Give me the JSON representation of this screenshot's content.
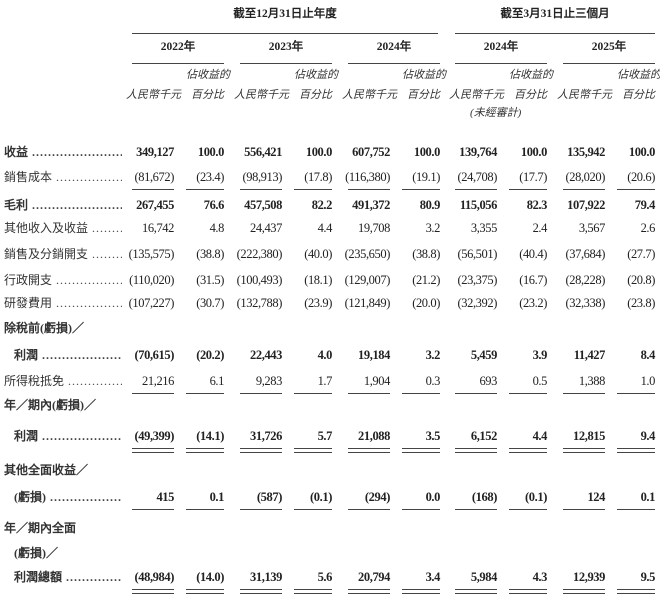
{
  "header": {
    "group_annual": "截至12月31日止年度",
    "group_interim": "截至3月31日止三個月",
    "years": [
      "2022年",
      "2023年",
      "2024年",
      "2024年",
      "2025年"
    ],
    "col_amount": "人民幣千元",
    "col_pct_line1": "佔收益的",
    "col_pct_line2": "百分比",
    "unaudited": "(未經審計)"
  },
  "rows": [
    {
      "label": "收益",
      "bold": true,
      "values": [
        "349,127",
        "100.0",
        "556,421",
        "100.0",
        "607,752",
        "100.0",
        "139,764",
        "100.0",
        "135,942",
        "100.0"
      ]
    },
    {
      "label": "銷售成本",
      "values": [
        "(81,672)",
        "(23.4)",
        "(98,913)",
        "(17.8)",
        "(116,380)",
        "(19.1)",
        "(24,708)",
        "(17.7)",
        "(28,020)",
        "(20.6)"
      ],
      "underline": "single"
    },
    {
      "label": "毛利",
      "bold": true,
      "values": [
        "267,455",
        "76.6",
        "457,508",
        "82.2",
        "491,372",
        "80.9",
        "115,056",
        "82.3",
        "107,922",
        "79.4"
      ]
    },
    {
      "label": "其他收入及收益",
      "values": [
        "16,742",
        "4.8",
        "24,437",
        "4.4",
        "19,708",
        "3.2",
        "3,355",
        "2.4",
        "3,567",
        "2.6"
      ]
    },
    {
      "label": "銷售及分銷開支",
      "values": [
        "(135,575)",
        "(38.8)",
        "(222,380)",
        "(40.0)",
        "(235,650)",
        "(38.8)",
        "(56,501)",
        "(40.4)",
        "(37,684)",
        "(27.7)"
      ]
    },
    {
      "label": "行政開支",
      "values": [
        "(110,020)",
        "(31.5)",
        "(100,493)",
        "(18.1)",
        "(129,007)",
        "(21.2)",
        "(23,375)",
        "(16.7)",
        "(28,228)",
        "(20.8)"
      ]
    },
    {
      "label": "研發費用",
      "values": [
        "(107,227)",
        "(30.7)",
        "(132,788)",
        "(23.9)",
        "(121,849)",
        "(20.0)",
        "(32,392)",
        "(23.2)",
        "(32,338)",
        "(23.8)"
      ]
    },
    {
      "label": "除稅前(虧損)／",
      "bold": true,
      "heading": true
    },
    {
      "label": "利潤",
      "bold": true,
      "indent": true,
      "values": [
        "(70,615)",
        "(20.2)",
        "22,443",
        "4.0",
        "19,184",
        "3.2",
        "5,459",
        "3.9",
        "11,427",
        "8.4"
      ]
    },
    {
      "label": "所得稅抵免",
      "values": [
        "21,216",
        "6.1",
        "9,283",
        "1.7",
        "1,904",
        "0.3",
        "693",
        "0.5",
        "1,388",
        "1.0"
      ],
      "underline": "single"
    },
    {
      "label": "年／期內(虧損)／",
      "bold": true,
      "heading": true
    },
    {
      "label": "利潤",
      "bold": true,
      "indent": true,
      "values": [
        "(49,399)",
        "(14.1)",
        "31,726",
        "5.7",
        "21,088",
        "3.5",
        "6,152",
        "4.4",
        "12,815",
        "9.4"
      ],
      "underline": "double"
    },
    {
      "label": "其他全面收益／",
      "bold": true,
      "heading": true
    },
    {
      "label": "(虧損)",
      "bold": true,
      "indent": true,
      "values": [
        "415",
        "0.1",
        "(587)",
        "(0.1)",
        "(294)",
        "0.0",
        "(168)",
        "(0.1)",
        "124",
        "0.1"
      ],
      "underline": "single"
    },
    {
      "label": "年／期內全面",
      "bold": true,
      "heading": true
    },
    {
      "label": "(虧損)／",
      "bold": true,
      "heading": true,
      "indent": true
    },
    {
      "label": "利潤總額",
      "bold": true,
      "indent": true,
      "values": [
        "(48,984)",
        "(14.0)",
        "31,139",
        "5.6",
        "20,794",
        "3.4",
        "5,984",
        "4.3",
        "12,939",
        "9.5"
      ],
      "underline": "double"
    }
  ]
}
